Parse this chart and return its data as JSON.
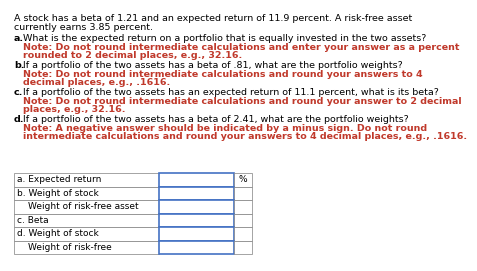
{
  "title_line1": "A stock has a beta of 1.21 and an expected return of 11.9 percent. A risk-free asset",
  "title_line2": "currently earns 3.85 percent.",
  "qa_label": "a.",
  "qa_black": "What is the expected return on a portfolio that is equally invested in the two assets?",
  "qa_red1": "Note: Do not round intermediate calculations and enter your answer as a percent",
  "qa_red2": "rounded to 2 decimal places, e.g., 32.16.",
  "qb_label": "b.",
  "qb_black": "If a portfolio of the two assets has a beta of .81, what are the portfolio weights?",
  "qb_red1": "Note: Do not round intermediate calculations and round your answers to 4",
  "qb_red2": "decimal places, e.g., .1616.",
  "qc_label": "c.",
  "qc_black": "If a portfolio of the two assets has an expected return of 11.1 percent, what is its beta?",
  "qc_red1": "Note: Do not round intermediate calculations and round your answer to 2 decimal",
  "qc_red2": "places, e.g., 32.16.",
  "qd_label": "d.",
  "qd_black": "If a portfolio of the two assets has a beta of 2.41, what are the portfolio weights?",
  "qd_red1": "Note: A negative answer should be indicated by a minus sign. Do not round",
  "qd_red2": "intermediate calculations and round your answers to 4 decimal places, e.g., .1616.",
  "table_rows": [
    {
      "label": "a. Expected return",
      "indent": 0,
      "suffix": "%"
    },
    {
      "label": "b. Weight of stock",
      "indent": 0,
      "suffix": ""
    },
    {
      "label": "Weight of risk-free asset",
      "indent": 1,
      "suffix": ""
    },
    {
      "label": "c. Beta",
      "indent": 0,
      "suffix": ""
    },
    {
      "label": "d. Weight of stock",
      "indent": 0,
      "suffix": ""
    },
    {
      "label": "Weight of risk-free",
      "indent": 1,
      "suffix": ""
    }
  ],
  "bg_color": "#ffffff",
  "black": "#000000",
  "red": "#c0392b",
  "blue": "#4472c4",
  "gray": "#808080",
  "fs_title": 6.8,
  "fs_q": 6.8,
  "fs_table": 6.5
}
